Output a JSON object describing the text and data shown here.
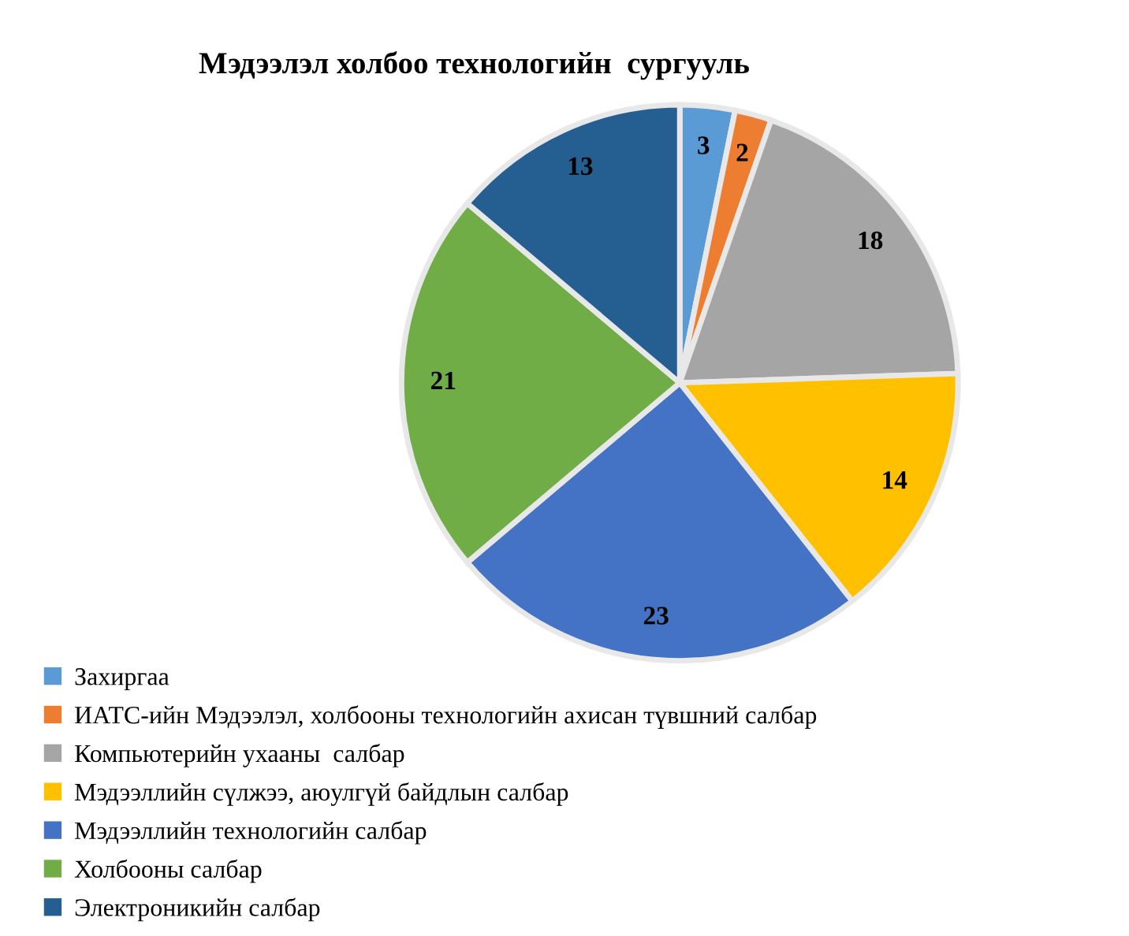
{
  "chart_data": {
    "type": "pie",
    "title": "Мэдээлэл холбоо технологийн  сургууль",
    "categories": [
      "Захиргаа",
      "ИАТС-ийн Мэдээлэл, холбооны технологийн ахисан түвшний салбар",
      "Компьютерийн ухааны  салбар",
      "Мэдээллийн сүлжээ, аюулгүй байдлын салбар",
      "Мэдээллийн технологийн салбар",
      "Холбооны салбар",
      "Электроникийн салбар"
    ],
    "values": [
      3,
      2,
      18,
      14,
      23,
      21,
      13
    ],
    "colors": [
      "#5b9bd5",
      "#ed7d31",
      "#a5a5a5",
      "#ffc000",
      "#4472c4",
      "#70ad47",
      "#255e91"
    ],
    "data_labels": true,
    "legend": "bottom left"
  }
}
